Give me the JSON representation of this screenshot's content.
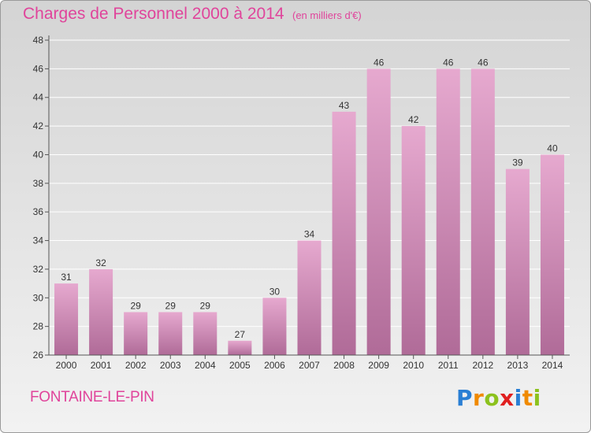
{
  "header": {
    "title": "Charges de Personnel 2000 à 2014",
    "unit": "(en milliers d'€)"
  },
  "footer": {
    "commune": "FONTAINE-LE-PIN",
    "logo_letters": [
      "P",
      "r",
      "o",
      "x",
      "i",
      "t",
      "i"
    ],
    "logo_colors": [
      "#2a7fd4",
      "#f08a00",
      "#8cc21e",
      "#e02020",
      "#2a7fd4",
      "#f08a00",
      "#8cc21e"
    ]
  },
  "colors": {
    "title": "#e0449b",
    "bar_top": "#e6a9cf",
    "bar_bottom": "#b06b98",
    "grid": "#ffffff"
  },
  "chart_data": {
    "type": "bar",
    "title": "Charges de Personnel 2000 à 2014",
    "subtitle": "(en milliers d'€)",
    "xlabel": "",
    "ylabel": "",
    "categories": [
      "2000",
      "2001",
      "2002",
      "2003",
      "2004",
      "2005",
      "2006",
      "2007",
      "2008",
      "2009",
      "2010",
      "2011",
      "2012",
      "2013",
      "2014"
    ],
    "values": [
      31,
      32,
      29,
      29,
      29,
      27,
      30,
      34,
      43,
      46,
      42,
      46,
      46,
      39,
      40
    ],
    "ylim": [
      26,
      48
    ],
    "yticks": [
      26,
      28,
      30,
      32,
      34,
      36,
      38,
      40,
      42,
      44,
      46,
      48
    ],
    "grid": true,
    "legend": "none"
  }
}
